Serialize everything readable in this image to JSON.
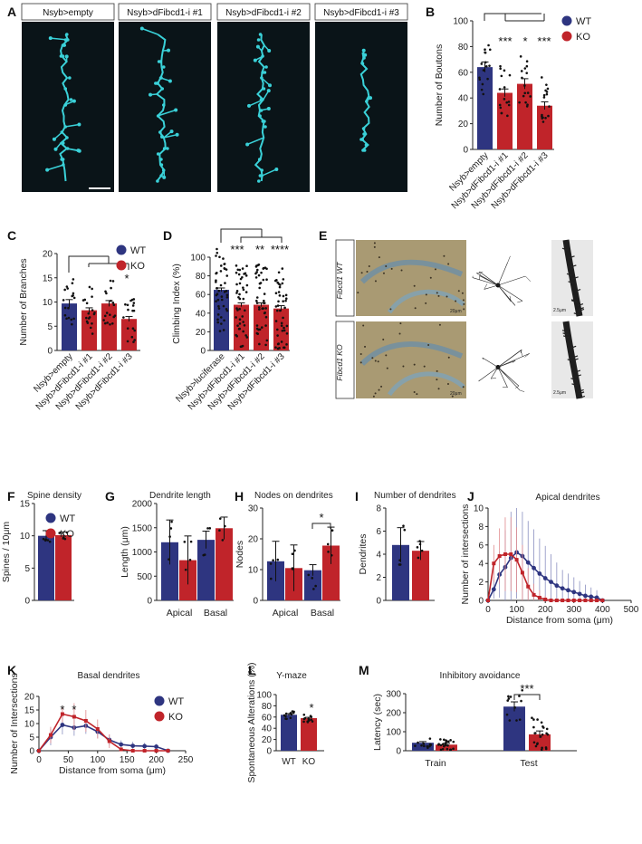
{
  "colors": {
    "WT": "#2e3580",
    "KO": "#c0242a",
    "micro_bg": "#0a1418",
    "micro_fg": "#3ad1d8"
  },
  "panels": {
    "A": {
      "label": "A",
      "headers": [
        "Nsyb>empty",
        "Nsyb>dFibcd1-i #1",
        "Nsyb>dFibcd1-i #2",
        "Nsyb>dFibcd1-i #3"
      ]
    },
    "E": {
      "label": "E",
      "rows": [
        "Fibcd1 WT",
        "Fibcd1 KO"
      ],
      "scales": [
        "20μm",
        "2.5μm",
        "20μm",
        "2.5μm"
      ]
    }
  },
  "chart_data": [
    {
      "id": "B",
      "type": "bar",
      "label": "B",
      "categories": [
        "Nsyb>empty",
        "Nsyb>dFibcd1-i #1",
        "Nsyb>dFibcd1-i #2",
        "Nsyb>dFibcd1-i #3"
      ],
      "values": [
        64,
        44,
        51,
        34
      ],
      "errors": [
        4,
        3,
        4,
        3
      ],
      "colors": [
        "WT",
        "KO",
        "KO",
        "KO"
      ],
      "ylabel": "Number of Boutons",
      "ylim": [
        0,
        100
      ],
      "yticks": [
        0,
        20,
        40,
        60,
        80,
        100
      ],
      "legend": [
        "WT",
        "KO"
      ],
      "legend_position": "top-right",
      "sig": [
        "***",
        "*",
        "***"
      ]
    },
    {
      "id": "C",
      "type": "bar",
      "label": "C",
      "categories": [
        "Nsyb>empty",
        "Nsyb>dFibcd1-i #1",
        "Nsyb>dFibcd1-i #2",
        "Nsyb>dFibcd1-i #3"
      ],
      "values": [
        9.7,
        8.3,
        9.7,
        6.5
      ],
      "errors": [
        0.8,
        0.5,
        0.6,
        0.5
      ],
      "colors": [
        "WT",
        "KO",
        "KO",
        "KO"
      ],
      "ylabel": "Number of Branches",
      "ylim": [
        0,
        20
      ],
      "yticks": [
        0,
        5,
        10,
        15,
        20
      ],
      "legend": [
        "WT",
        "KO"
      ],
      "legend_position": "top-right",
      "sig": [
        "*"
      ]
    },
    {
      "id": "D",
      "type": "bar",
      "label": "D",
      "categories": [
        "Nsyb>luciferase",
        "Nsyb>dFibcd1-i #1",
        "Nsyb>dFibcd1-i #2",
        "Nsyb>dFibcd1-i #3"
      ],
      "values": [
        65,
        49,
        49,
        45
      ],
      "errors": [
        2,
        2,
        2,
        3
      ],
      "colors": [
        "WT",
        "KO",
        "KO",
        "KO"
      ],
      "ylabel": "Climbing Index (%)",
      "ylim": [
        0,
        100
      ],
      "yticks": [
        0,
        20,
        40,
        60,
        80,
        100
      ],
      "sig": [
        "***",
        "**",
        "****"
      ]
    },
    {
      "id": "F",
      "type": "bar",
      "label": "F",
      "title": "Spine density",
      "categories": [
        ""
      ],
      "series": [
        {
          "name": "WT",
          "values": [
            10
          ]
        },
        {
          "name": "KO",
          "values": [
            10.1
          ]
        }
      ],
      "errors": [
        [
          0.8
        ],
        [
          0.5
        ]
      ],
      "ylabel": "Spines / 10μm",
      "ylim": [
        0,
        15
      ],
      "yticks": [
        0,
        5,
        10,
        15
      ],
      "legend": [
        "WT",
        "KO"
      ],
      "legend_position": "top-right"
    },
    {
      "id": "G",
      "type": "bar",
      "label": "G",
      "title": "Dendrite length",
      "categories": [
        "Apical",
        "Basal"
      ],
      "series": [
        {
          "name": "WT",
          "values": [
            1200,
            1250
          ]
        },
        {
          "name": "KO",
          "values": [
            830,
            1490
          ]
        }
      ],
      "errors": [
        [
          460,
          180
        ],
        [
          500,
          230
        ]
      ],
      "ylabel": "Length (μm)",
      "ylim": [
        0,
        2000
      ],
      "yticks": [
        0,
        500,
        1000,
        1500,
        2000
      ]
    },
    {
      "id": "H",
      "type": "bar",
      "label": "H",
      "title": "Nodes on dendrites",
      "categories": [
        "Apical",
        "Basal"
      ],
      "series": [
        {
          "name": "WT",
          "values": [
            12.7,
            9.8
          ]
        },
        {
          "name": "KO",
          "values": [
            10.5,
            17.8
          ]
        }
      ],
      "errors": [
        [
          6.5,
          1.8
        ],
        [
          7.5,
          6
        ]
      ],
      "ylabel": "Nodes",
      "ylim": [
        0,
        30
      ],
      "yticks": [
        0,
        10,
        20,
        30
      ],
      "sig": [
        "*"
      ]
    },
    {
      "id": "I",
      "type": "bar",
      "label": "I",
      "title": "Number of dendrites",
      "categories": [
        ""
      ],
      "series": [
        {
          "name": "WT",
          "values": [
            4.8
          ]
        },
        {
          "name": "KO",
          "values": [
            4.3
          ]
        }
      ],
      "errors": [
        [
          1.5
        ],
        [
          0.8
        ]
      ],
      "ylabel": "Dendrites",
      "ylim": [
        0,
        8
      ],
      "yticks": [
        0,
        2,
        4,
        6,
        8
      ]
    },
    {
      "id": "J",
      "type": "line",
      "label": "J",
      "title": "Apical dendrites",
      "x": [
        0,
        20,
        40,
        60,
        80,
        100,
        120,
        140,
        160,
        180,
        200,
        220,
        240,
        260,
        280,
        300,
        320,
        340,
        360,
        380,
        400
      ],
      "series": [
        {
          "name": "WT",
          "values": [
            0,
            1.2,
            2.8,
            3.6,
            4.6,
            5.2,
            4.8,
            4.1,
            3.5,
            2.9,
            2.4,
            2.0,
            1.6,
            1.3,
            1.1,
            0.9,
            0.7,
            0.5,
            0.4,
            0.3,
            0
          ]
        },
        {
          "name": "KO",
          "values": [
            0,
            4.0,
            4.8,
            5.0,
            5.0,
            4.4,
            3.0,
            1.5,
            0.6,
            0.3,
            0.1,
            0,
            0,
            0,
            0,
            0,
            0,
            0,
            0,
            0,
            0
          ]
        }
      ],
      "errors": [
        [
          0,
          1,
          2.5,
          4,
          5,
          5,
          4.8,
          4.5,
          4.2,
          3.8,
          3.5,
          3,
          2.5,
          2,
          1.8,
          1.6,
          1.4,
          1.2,
          1,
          0.8,
          0
        ],
        [
          0,
          2,
          3,
          4,
          4,
          3.5,
          3,
          2,
          1.2,
          0.8,
          0.4,
          0,
          0,
          0,
          0,
          0,
          0,
          0,
          0,
          0,
          0
        ]
      ],
      "xlabel": "Distance from soma (μm)",
      "ylabel": "Number of intersections",
      "xlim": [
        0,
        500
      ],
      "ylim": [
        0,
        10
      ],
      "xticks": [
        0,
        100,
        200,
        300,
        400,
        500
      ],
      "yticks": [
        0,
        2,
        4,
        6,
        8,
        10
      ]
    },
    {
      "id": "K",
      "type": "line",
      "label": "K",
      "title": "Basal dendrites",
      "x": [
        0,
        20,
        40,
        60,
        80,
        100,
        120,
        140,
        160,
        180,
        200,
        220
      ],
      "series": [
        {
          "name": "WT",
          "values": [
            0,
            5.0,
            9.5,
            8.5,
            9.2,
            7.0,
            4.0,
            2.3,
            1.8,
            1.7,
            1.5,
            0
          ]
        },
        {
          "name": "KO",
          "values": [
            0,
            5.8,
            13.5,
            12.5,
            11.0,
            8.0,
            3.5,
            0.5,
            0,
            0,
            0,
            0
          ]
        }
      ],
      "errors": [
        [
          0,
          3,
          3.5,
          3,
          3,
          2.5,
          2,
          1.5,
          1.5,
          1.2,
          1,
          0
        ],
        [
          0,
          3,
          3,
          5,
          4,
          3.5,
          2.5,
          1,
          0,
          0,
          0,
          0
        ]
      ],
      "xlabel": "Distance from soma (μm)",
      "ylabel": "Number of Intersections",
      "xlim": [
        0,
        250
      ],
      "ylim": [
        0,
        20
      ],
      "xticks": [
        0,
        50,
        100,
        150,
        200,
        250
      ],
      "yticks": [
        0,
        5,
        10,
        15,
        20
      ],
      "legend": [
        "WT",
        "KO"
      ],
      "legend_position": "top-right",
      "sig": [
        "*",
        "*"
      ]
    },
    {
      "id": "L",
      "type": "bar",
      "label": "L",
      "title": "Y-maze",
      "categories": [
        "WT",
        "KO"
      ],
      "values": [
        64,
        58
      ],
      "errors": [
        2,
        1.5
      ],
      "colors": [
        "WT",
        "KO"
      ],
      "ylabel": "Spontaneous Alterations (%)",
      "ylim": [
        0,
        100
      ],
      "yticks": [
        0,
        20,
        40,
        60,
        80,
        100
      ],
      "sig": [
        "*"
      ]
    },
    {
      "id": "M",
      "type": "bar",
      "label": "M",
      "title": "Inhibitory avoidance",
      "categories": [
        "Train",
        "Test"
      ],
      "series": [
        {
          "name": "WT",
          "values": [
            42,
            232
          ]
        },
        {
          "name": "KO",
          "values": [
            32,
            86
          ]
        }
      ],
      "errors": [
        [
          6,
          25
        ],
        [
          7,
          18
        ]
      ],
      "ylabel": "Latency (sec)",
      "ylim": [
        0,
        300
      ],
      "yticks": [
        0,
        100,
        200,
        300
      ],
      "sig": [
        "***"
      ]
    }
  ]
}
